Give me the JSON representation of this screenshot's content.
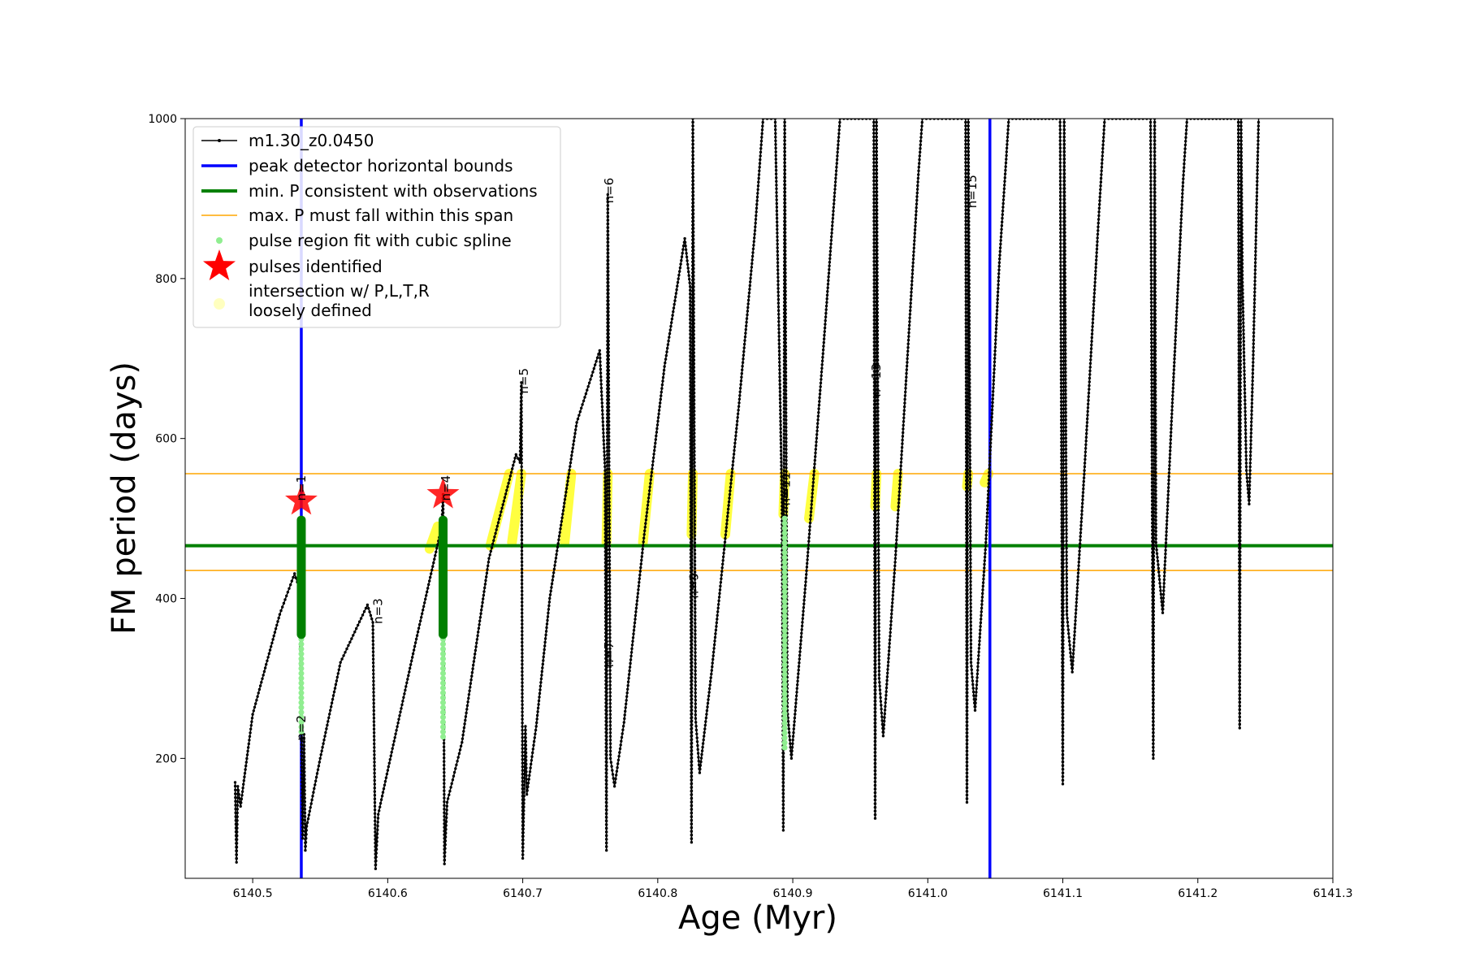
{
  "chart_data": {
    "type": "line",
    "title": "",
    "xlabel": "Age (Myr)",
    "ylabel": "FM period (days)",
    "xlim": [
      6140.45,
      6141.3
    ],
    "ylim": [
      50,
      1000
    ],
    "xticks": [
      "6140.5",
      "6140.6",
      "6140.7",
      "6140.8",
      "6140.9",
      "6141.0",
      "6141.1",
      "6141.2",
      "6141.3"
    ],
    "xtick_values": [
      6140.5,
      6140.6,
      6140.7,
      6140.8,
      6140.9,
      6141.0,
      6141.1,
      6141.2,
      6141.3
    ],
    "yticks": [
      "200",
      "400",
      "600",
      "800",
      "1000"
    ],
    "ytick_values": [
      200,
      400,
      600,
      800,
      1000
    ],
    "grid": false,
    "legend_position": "top-left",
    "colors": {
      "track": "#000000",
      "bounds": "#0000ff",
      "min_p": "#008000",
      "max_p": "#ffa500",
      "spline": "#90ee90",
      "pulse": "#ff0000",
      "loose": "#ffff00"
    },
    "legend": [
      {
        "label": "m1.30_z0.0450",
        "marker": "line-dot"
      },
      {
        "label": "peak detector horizontal bounds",
        "marker": "blue-line"
      },
      {
        "label": "min. P consistent with observations",
        "marker": "green-line"
      },
      {
        "label": "max. P must fall within this span",
        "marker": "orange-line"
      },
      {
        "label": "pulse region fit with cubic spline",
        "marker": "green-dot"
      },
      {
        "label": "pulses identified",
        "marker": "red-star"
      },
      {
        "label": "intersection w/ P,L,T,R",
        "label2": "loosely defined",
        "marker": "yellow-dot"
      }
    ],
    "vertical_bounds": [
      6140.536,
      6141.046
    ],
    "min_p": 466,
    "max_p_span": [
      435,
      556
    ],
    "track_vertices": [
      [
        6140.487,
        170
      ],
      [
        6140.488,
        70
      ],
      [
        6140.489,
        165
      ],
      [
        6140.491,
        140
      ],
      [
        6140.5,
        255
      ],
      [
        6140.52,
        380
      ],
      [
        6140.531,
        431
      ],
      [
        6140.535,
        410
      ],
      [
        6140.536,
        250
      ],
      [
        6140.537,
        100
      ],
      [
        6140.538,
        230
      ],
      [
        6140.539,
        85
      ],
      [
        6140.54,
        115
      ],
      [
        6140.55,
        200
      ],
      [
        6140.565,
        320
      ],
      [
        6140.585,
        392
      ],
      [
        6140.589,
        370
      ],
      [
        6140.591,
        62
      ],
      [
        6140.593,
        130
      ],
      [
        6140.6,
        185
      ],
      [
        6140.62,
        340
      ],
      [
        6140.64,
        490
      ],
      [
        6140.641,
        530
      ],
      [
        6140.642,
        68
      ],
      [
        6140.644,
        145
      ],
      [
        6140.655,
        220
      ],
      [
        6140.675,
        450
      ],
      [
        6140.695,
        580
      ],
      [
        6140.698,
        570
      ],
      [
        6140.699,
        670
      ],
      [
        6140.7,
        75
      ],
      [
        6140.702,
        240
      ],
      [
        6140.703,
        155
      ],
      [
        6140.71,
        240
      ],
      [
        6140.72,
        400
      ],
      [
        6140.74,
        620
      ],
      [
        6140.757,
        710
      ],
      [
        6140.761,
        560
      ],
      [
        6140.762,
        85
      ],
      [
        6140.763,
        905
      ],
      [
        6140.765,
        200
      ],
      [
        6140.768,
        165
      ],
      [
        6140.775,
        245
      ],
      [
        6140.79,
        480
      ],
      [
        6140.805,
        690
      ],
      [
        6140.82,
        850
      ],
      [
        6140.824,
        790
      ],
      [
        6140.825,
        95
      ],
      [
        6140.826,
        1000
      ],
      [
        6140.828,
        250
      ],
      [
        6140.831,
        182
      ],
      [
        6140.84,
        310
      ],
      [
        6140.86,
        640
      ],
      [
        6140.872,
        860
      ],
      [
        6140.878,
        1000
      ],
      [
        6140.887,
        1000
      ],
      [
        6140.892,
        520
      ],
      [
        6140.893,
        110
      ],
      [
        6140.894,
        1000
      ],
      [
        6140.896,
        260
      ],
      [
        6140.899,
        200
      ],
      [
        6140.91,
        430
      ],
      [
        6140.923,
        720
      ],
      [
        6140.932,
        930
      ],
      [
        6140.935,
        1000
      ],
      [
        6140.96,
        1000
      ],
      [
        6140.961,
        125
      ],
      [
        6140.962,
        1000
      ],
      [
        6140.964,
        300
      ],
      [
        6140.967,
        228
      ],
      [
        6140.976,
        450
      ],
      [
        6140.987,
        760
      ],
      [
        6140.993,
        930
      ],
      [
        6140.996,
        1000
      ],
      [
        6141.028,
        1000
      ],
      [
        6141.029,
        145
      ],
      [
        6141.03,
        1000
      ],
      [
        6141.032,
        320
      ],
      [
        6141.035,
        260
      ],
      [
        6141.043,
        470
      ],
      [
        6141.053,
        820
      ],
      [
        6141.06,
        1000
      ],
      [
        6141.098,
        1000
      ],
      [
        6141.1,
        168
      ],
      [
        6141.101,
        1000
      ],
      [
        6141.103,
        380
      ],
      [
        6141.107,
        308
      ],
      [
        6141.116,
        560
      ],
      [
        6141.126,
        860
      ],
      [
        6141.131,
        1000
      ],
      [
        6141.165,
        1000
      ],
      [
        6141.167,
        200
      ],
      [
        6141.168,
        1000
      ],
      [
        6141.169,
        470
      ],
      [
        6141.174,
        382
      ],
      [
        6141.181,
        640
      ],
      [
        6141.189,
        920
      ],
      [
        6141.192,
        1000
      ],
      [
        6141.23,
        1000
      ],
      [
        6141.231,
        238
      ],
      [
        6141.232,
        1000
      ],
      [
        6141.233,
        800
      ],
      [
        6141.236,
        560
      ],
      [
        6141.238,
        518
      ],
      [
        6141.241,
        700
      ],
      [
        6141.245,
        1000
      ]
    ],
    "pulse_labels": [
      {
        "x": 6140.539,
        "y": 522,
        "text": "n=1"
      },
      {
        "x": 6140.539,
        "y": 222,
        "text": "n=2"
      },
      {
        "x": 6140.596,
        "y": 368,
        "text": "n=3"
      },
      {
        "x": 6140.646,
        "y": 522,
        "text": "n=4"
      },
      {
        "x": 6140.704,
        "y": 656,
        "text": "n=5"
      },
      {
        "x": 6140.767,
        "y": 894,
        "text": "n=6"
      },
      {
        "x": 6140.767,
        "y": 314,
        "text": "n=7"
      },
      {
        "x": 6140.83,
        "y": 400,
        "text": "n=9"
      },
      {
        "x": 6140.898,
        "y": 516,
        "text": "n=11"
      },
      {
        "x": 6140.965,
        "y": 652,
        "text": "n=13"
      },
      {
        "x": 6141.036,
        "y": 888,
        "text": "n=15"
      }
    ],
    "pulses_identified": [
      [
        6140.536,
        522
      ],
      [
        6140.641,
        530
      ]
    ],
    "spline_regions": [
      {
        "x": 6140.536,
        "y_from": 228,
        "y_to": 355
      },
      {
        "x": 6140.641,
        "y_from": 225,
        "y_to": 355
      },
      {
        "x": 6140.894,
        "y_from": 212,
        "y_to": 500
      }
    ],
    "fit_regions": [
      {
        "x": 6140.536,
        "y_from": 355,
        "y_to": 498
      },
      {
        "x": 6140.641,
        "y_from": 355,
        "y_to": 498
      }
    ],
    "loose_regions": [
      {
        "x1": 6140.631,
        "y1": 462,
        "x2": 6140.637,
        "y2": 490
      },
      {
        "x1": 6140.676,
        "y1": 466,
        "x2": 6140.69,
        "y2": 556
      },
      {
        "x1": 6140.692,
        "y1": 470,
        "x2": 6140.699,
        "y2": 556
      },
      {
        "x1": 6140.731,
        "y1": 470,
        "x2": 6140.736,
        "y2": 556
      },
      {
        "x1": 6140.762,
        "y1": 470,
        "x2": 6140.763,
        "y2": 556
      },
      {
        "x1": 6140.789,
        "y1": 470,
        "x2": 6140.794,
        "y2": 556
      },
      {
        "x1": 6140.825,
        "y1": 480,
        "x2": 6140.826,
        "y2": 556
      },
      {
        "x1": 6140.85,
        "y1": 480,
        "x2": 6140.854,
        "y2": 556
      },
      {
        "x1": 6140.893,
        "y1": 505,
        "x2": 6140.894,
        "y2": 556
      },
      {
        "x1": 6140.912,
        "y1": 500,
        "x2": 6140.916,
        "y2": 556
      },
      {
        "x1": 6140.961,
        "y1": 515,
        "x2": 6140.962,
        "y2": 556
      },
      {
        "x1": 6140.976,
        "y1": 515,
        "x2": 6140.978,
        "y2": 556
      },
      {
        "x1": 6141.029,
        "y1": 540,
        "x2": 6141.03,
        "y2": 556
      },
      {
        "x1": 6141.042,
        "y1": 545,
        "x2": 6141.045,
        "y2": 556
      }
    ]
  }
}
